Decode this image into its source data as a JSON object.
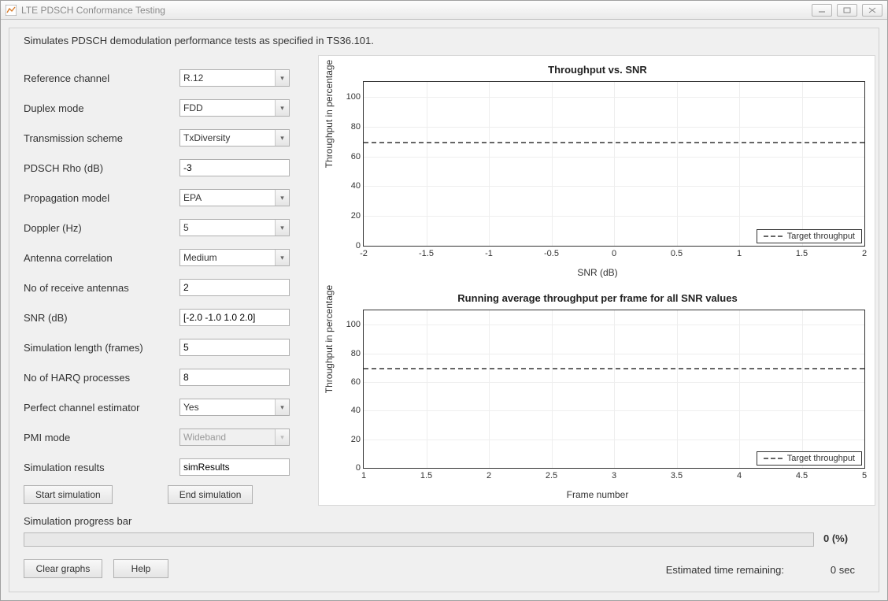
{
  "window": {
    "title": "LTE PDSCH Conformance Testing"
  },
  "description": "Simulates PDSCH demodulation performance tests as specified in TS36.101.",
  "form": {
    "reference_channel": {
      "label": "Reference channel",
      "value": "R.12"
    },
    "duplex_mode": {
      "label": "Duplex mode",
      "value": "FDD"
    },
    "tx_scheme": {
      "label": "Transmission scheme",
      "value": "TxDiversity"
    },
    "pdsch_rho": {
      "label": "PDSCH Rho (dB)",
      "value": "-3"
    },
    "prop_model": {
      "label": "Propagation model",
      "value": "EPA"
    },
    "doppler": {
      "label": "Doppler (Hz)",
      "value": "5"
    },
    "ant_corr": {
      "label": "Antenna correlation",
      "value": "Medium"
    },
    "rx_ant": {
      "label": "No of receive antennas",
      "value": "2"
    },
    "snr": {
      "label": "SNR (dB)",
      "value": "[-2.0 -1.0 1.0 2.0]"
    },
    "sim_len": {
      "label": "Simulation length (frames)",
      "value": "5"
    },
    "harq": {
      "label": "No of HARQ processes",
      "value": "8"
    },
    "perfect_ce": {
      "label": "Perfect channel estimator",
      "value": "Yes"
    },
    "pmi_mode": {
      "label": "PMI mode",
      "value": "Wideband"
    },
    "sim_results": {
      "label": "Simulation results",
      "value": "simResults"
    }
  },
  "buttons": {
    "start": "Start simulation",
    "end": "End simulation",
    "clear": "Clear graphs",
    "help": "Help"
  },
  "progress": {
    "label": "Simulation progress bar",
    "percent_text": "0 (%)"
  },
  "eta": {
    "label": "Estimated time remaining:",
    "value": "0 sec"
  },
  "chart_top": {
    "type": "line",
    "title": "Throughput vs. SNR",
    "ylabel": "Throughput in percentage",
    "xlabel": "SNR (dB)",
    "ylim": [
      0,
      110
    ],
    "yticks": [
      0,
      20,
      40,
      60,
      80,
      100
    ],
    "xlim": [
      -2,
      2
    ],
    "xticks": [
      -2,
      -1.5,
      -1,
      -0.5,
      0,
      0.5,
      1,
      1.5,
      2
    ],
    "target_line_y": 70,
    "target_line_color": "#666666",
    "target_line_dash": true,
    "grid_color": "#eeeeee",
    "border_color": "#333333",
    "background_color": "#ffffff",
    "legend": "Target throughput"
  },
  "chart_bottom": {
    "type": "line",
    "title": "Running average throughput per frame for all SNR values",
    "ylabel": "Throughput in percentage",
    "xlabel": "Frame number",
    "ylim": [
      0,
      110
    ],
    "yticks": [
      0,
      20,
      40,
      60,
      80,
      100
    ],
    "xlim": [
      1,
      5
    ],
    "xticks": [
      1,
      1.5,
      2,
      2.5,
      3,
      3.5,
      4,
      4.5,
      5
    ],
    "target_line_y": 70,
    "target_line_color": "#666666",
    "target_line_dash": true,
    "grid_color": "#eeeeee",
    "border_color": "#333333",
    "background_color": "#ffffff",
    "legend": "Target throughput"
  }
}
